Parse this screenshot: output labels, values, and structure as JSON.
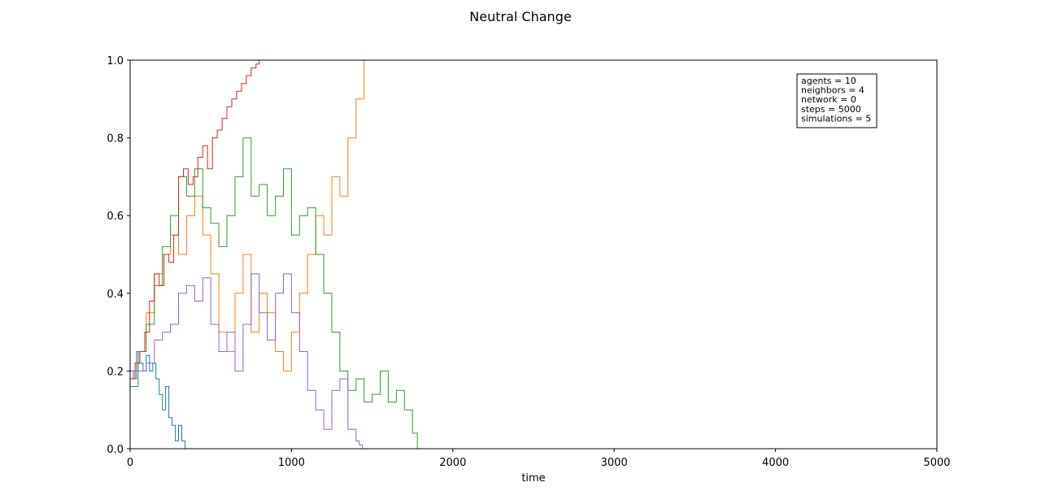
{
  "figure": {
    "title": "Neutral Change"
  },
  "chart_data": {
    "type": "line",
    "title": "Neutral Change",
    "xlabel": "time",
    "ylabel": "",
    "xlim": [
      0,
      5000
    ],
    "ylim": [
      0,
      1.0
    ],
    "x_ticks": [
      0,
      1000,
      2000,
      3000,
      4000,
      5000
    ],
    "x_tick_labels": [
      "0",
      "1000",
      "2000",
      "3000",
      "4000",
      "5000"
    ],
    "y_ticks": [
      0.0,
      0.2,
      0.4,
      0.6,
      0.8,
      1.0
    ],
    "y_tick_labels": [
      "0.0",
      "0.2",
      "0.4",
      "0.6",
      "0.8",
      "1.0"
    ],
    "grid": false,
    "legend": null,
    "annotation_box": {
      "position": "top-right",
      "lines": [
        "agents = 10",
        "neighbors = 4",
        "network = 0",
        "steps = 5000",
        "simulations = 5"
      ]
    },
    "series": [
      {
        "color": "#1f77b4",
        "x": [
          0,
          20,
          40,
          60,
          80,
          100,
          120,
          140,
          160,
          180,
          200,
          220,
          240,
          260,
          280,
          300,
          320,
          340,
          5000
        ],
        "y": [
          0.2,
          0.18,
          0.25,
          0.22,
          0.2,
          0.24,
          0.2,
          0.22,
          0.18,
          0.14,
          0.1,
          0.16,
          0.08,
          0.06,
          0.02,
          0.06,
          0.02,
          0.0,
          0.0
        ]
      },
      {
        "color": "#ff7f0e",
        "x": [
          0,
          50,
          100,
          150,
          200,
          250,
          300,
          350,
          400,
          450,
          500,
          550,
          600,
          650,
          700,
          750,
          800,
          850,
          900,
          950,
          1000,
          1050,
          1100,
          1150,
          1200,
          1250,
          1300,
          1350,
          1400,
          1450,
          5000
        ],
        "y": [
          0.2,
          0.25,
          0.35,
          0.45,
          0.5,
          0.55,
          0.5,
          0.6,
          0.65,
          0.55,
          0.45,
          0.3,
          0.25,
          0.4,
          0.5,
          0.3,
          0.4,
          0.35,
          0.25,
          0.2,
          0.3,
          0.4,
          0.5,
          0.6,
          0.55,
          0.7,
          0.65,
          0.8,
          0.9,
          1.0,
          1.0
        ]
      },
      {
        "color": "#2ca02c",
        "x": [
          0,
          50,
          100,
          150,
          200,
          250,
          300,
          350,
          400,
          450,
          500,
          550,
          600,
          650,
          700,
          750,
          800,
          850,
          900,
          950,
          1000,
          1050,
          1100,
          1150,
          1200,
          1250,
          1300,
          1350,
          1400,
          1450,
          1500,
          1550,
          1600,
          1650,
          1700,
          1750,
          1780,
          5000
        ],
        "y": [
          0.16,
          0.25,
          0.32,
          0.42,
          0.52,
          0.6,
          0.7,
          0.65,
          0.72,
          0.62,
          0.58,
          0.52,
          0.6,
          0.7,
          0.8,
          0.65,
          0.68,
          0.6,
          0.65,
          0.72,
          0.55,
          0.6,
          0.62,
          0.5,
          0.4,
          0.3,
          0.2,
          0.15,
          0.18,
          0.12,
          0.14,
          0.2,
          0.12,
          0.15,
          0.1,
          0.04,
          0.0,
          0.0
        ]
      },
      {
        "color": "#d62728",
        "x": [
          0,
          30,
          60,
          90,
          120,
          150,
          180,
          210,
          240,
          270,
          300,
          330,
          360,
          390,
          420,
          450,
          480,
          510,
          540,
          570,
          600,
          630,
          660,
          690,
          720,
          750,
          780,
          800,
          5000
        ],
        "y": [
          0.18,
          0.22,
          0.25,
          0.3,
          0.38,
          0.45,
          0.42,
          0.5,
          0.48,
          0.55,
          0.7,
          0.72,
          0.68,
          0.7,
          0.75,
          0.78,
          0.72,
          0.8,
          0.82,
          0.85,
          0.88,
          0.9,
          0.92,
          0.94,
          0.96,
          0.98,
          0.99,
          1.0,
          1.0
        ]
      },
      {
        "color": "#9467bd",
        "x": [
          0,
          50,
          100,
          150,
          200,
          250,
          300,
          350,
          400,
          450,
          500,
          550,
          600,
          650,
          700,
          750,
          800,
          850,
          900,
          950,
          1000,
          1050,
          1100,
          1150,
          1200,
          1250,
          1300,
          1350,
          1400,
          1420,
          1440,
          5000
        ],
        "y": [
          0.2,
          0.2,
          0.22,
          0.28,
          0.3,
          0.32,
          0.4,
          0.42,
          0.38,
          0.44,
          0.32,
          0.25,
          0.3,
          0.2,
          0.32,
          0.45,
          0.35,
          0.28,
          0.4,
          0.45,
          0.35,
          0.25,
          0.15,
          0.1,
          0.05,
          0.15,
          0.18,
          0.05,
          0.02,
          0.01,
          0.0,
          0.0
        ]
      }
    ]
  }
}
